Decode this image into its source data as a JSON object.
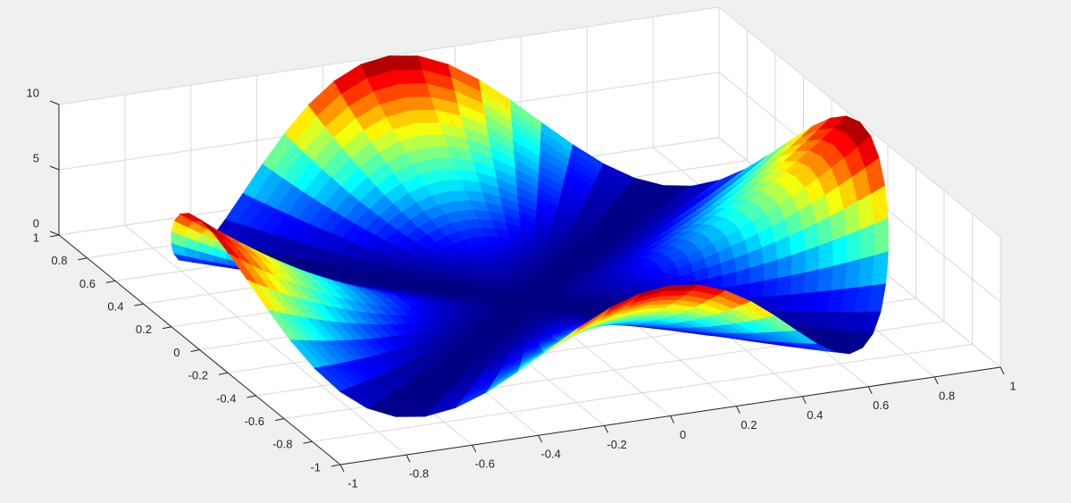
{
  "chart_data": {
    "type": "surface",
    "title": "",
    "xlabel": "",
    "ylabel": "",
    "zlabel": "",
    "colormap": "jet",
    "surface_function": "z = 10 * (r*cos(2*theta))^2 over the unit disk (r in [0,1], theta in [0,2*pi])",
    "xlim": [
      -1,
      1
    ],
    "ylim": [
      -1,
      1
    ],
    "zlim": [
      0,
      10
    ],
    "x_ticks": [
      -1,
      -0.8,
      -0.6,
      -0.4,
      -0.2,
      0,
      0.2,
      0.4,
      0.6,
      0.8,
      1
    ],
    "x_tick_labels": [
      "-1",
      "-0.8",
      "-0.6",
      "-0.4",
      "-0.2",
      "0",
      "0.2",
      "0.4",
      "0.6",
      "0.8",
      "1"
    ],
    "y_ticks": [
      -1,
      -0.8,
      -0.6,
      -0.4,
      -0.2,
      0,
      0.2,
      0.4,
      0.6,
      0.8,
      1
    ],
    "y_tick_labels": [
      "-1",
      "-0.8",
      "-0.6",
      "-0.4",
      "-0.2",
      "0",
      "0.2",
      "0.4",
      "0.6",
      "0.8",
      "1"
    ],
    "z_ticks": [
      0,
      5,
      10
    ],
    "z_tick_labels": [
      "0",
      "5",
      "10"
    ],
    "grid": true,
    "boundary_z_max": 10,
    "boundary_z_min": 0
  },
  "colors": {
    "figure_background": "#f0f0f0",
    "axes_background": "#ffffff",
    "grid": "#d9d9d9",
    "axis": "#262626"
  }
}
